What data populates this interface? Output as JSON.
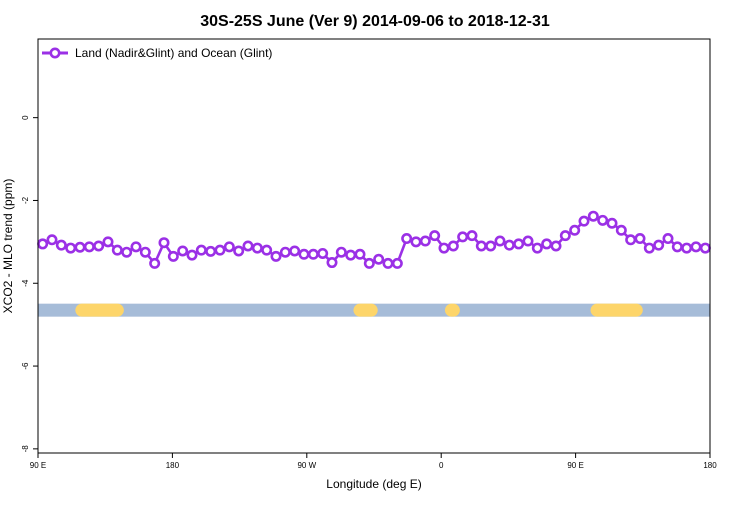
{
  "chart_data": {
    "type": "line",
    "title": "30S-25S June (Ver 9)   2014-09-06 to 2018-12-31",
    "xlabel": "Longitude (deg E)",
    "ylabel": "XCO2 - MLO trend (ppm)",
    "xlim": [
      90,
      450
    ],
    "ylim": [
      -8.1,
      1.9
    ],
    "x_ticks": [
      {
        "value": 90,
        "label": "90 E"
      },
      {
        "value": 162,
        "label": "180"
      },
      {
        "value": 234,
        "label": "90 W"
      },
      {
        "value": 306,
        "label": "0"
      },
      {
        "value": 378,
        "label": "90 E"
      },
      {
        "value": 450,
        "label": "180"
      }
    ],
    "y_ticks": [
      {
        "value": 0,
        "label": "0"
      },
      {
        "value": -2,
        "label": "-2"
      },
      {
        "value": -4,
        "label": "-4"
      },
      {
        "value": -6,
        "label": "-6"
      },
      {
        "value": -8,
        "label": "-8"
      }
    ],
    "legend_position": "top-left",
    "colors": {
      "series": "#9b30e6",
      "ocean": "#a6bcd8",
      "land": "#fdd56a"
    },
    "series": [
      {
        "name": "Land (Nadir&Glint) and Ocean (Glint)",
        "x": [
          92.5,
          97.5,
          102.5,
          107.5,
          112.5,
          117.5,
          122.5,
          127.5,
          132.5,
          137.5,
          142.5,
          147.5,
          152.5,
          157.5,
          162.5,
          167.5,
          172.5,
          177.5,
          182.5,
          187.5,
          192.5,
          197.5,
          202.5,
          207.5,
          212.5,
          217.5,
          222.5,
          227.5,
          232.5,
          237.5,
          242.5,
          247.5,
          252.5,
          257.5,
          262.5,
          267.5,
          272.5,
          277.5,
          282.5,
          287.5,
          292.5,
          297.5,
          302.5,
          307.5,
          312.5,
          317.5,
          322.5,
          327.5,
          332.5,
          337.5,
          342.5,
          347.5,
          352.5,
          357.5,
          362.5,
          367.5,
          372.5,
          377.5,
          382.5,
          387.5,
          392.5,
          397.5,
          402.5,
          407.5,
          412.5,
          417.5,
          422.5,
          427.5,
          432.5,
          437.5,
          442.5,
          447.5
        ],
        "values": [
          -3.05,
          -2.95,
          -3.08,
          -3.15,
          -3.13,
          -3.12,
          -3.1,
          -3.0,
          -3.2,
          -3.25,
          -3.12,
          -3.25,
          -3.52,
          -3.02,
          -3.35,
          -3.22,
          -3.32,
          -3.2,
          -3.23,
          -3.2,
          -3.12,
          -3.22,
          -3.1,
          -3.15,
          -3.2,
          -3.35,
          -3.25,
          -3.22,
          -3.3,
          -3.3,
          -3.28,
          -3.5,
          -3.25,
          -3.32,
          -3.3,
          -3.52,
          -3.42,
          -3.52,
          -3.52,
          -2.92,
          -3.0,
          -2.98,
          -2.85,
          -3.15,
          -3.1,
          -2.88,
          -2.85,
          -3.1,
          -3.1,
          -2.98,
          -3.08,
          -3.05,
          -2.98,
          -3.15,
          -3.05,
          -3.1,
          -2.85,
          -2.72,
          -2.5,
          -2.38,
          -2.48,
          -2.55,
          -2.72,
          -2.95,
          -2.92,
          -3.15,
          -3.08,
          -2.92,
          -3.12,
          -3.15,
          -3.12,
          -3.15
        ]
      }
    ],
    "surface_bar": {
      "y": -4.65,
      "land_x_ranges": [
        [
          110,
          136
        ],
        [
          259,
          272
        ],
        [
          308,
          316
        ],
        [
          386,
          414
        ]
      ]
    }
  }
}
